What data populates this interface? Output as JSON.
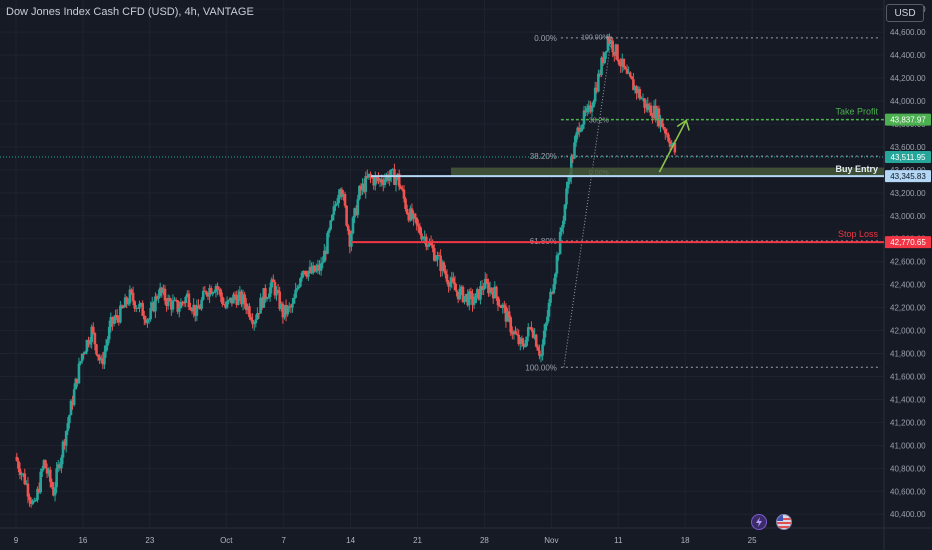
{
  "header": {
    "title": "Dow Jones Index Cash CFD (USD), 4h, VANTAGE",
    "currency_button": "USD"
  },
  "icons": {
    "bolt": "lightning-bolt-icon",
    "flag": "us-flag-icon"
  },
  "colors": {
    "background": "#161a25",
    "up": "#26a69a",
    "down": "#ef5350",
    "take_profit": "#4caf50",
    "stop_loss": "#f23645",
    "entry": "#b3d7f5",
    "fib": "#9aa0ad",
    "price_line": "#26a69a",
    "arrow": "#8bc34a"
  },
  "chart_data": {
    "type": "candlestick",
    "title": "Dow Jones Index Cash CFD (USD), 4h, VANTAGE",
    "currency": "USD",
    "y_ticks": [
      40400,
      40600,
      40800,
      41000,
      41200,
      41400,
      41600,
      41800,
      42000,
      42200,
      42400,
      42600,
      42800,
      43000,
      43200,
      43400,
      43600,
      43800,
      44000,
      44200,
      44400,
      44600,
      44800
    ],
    "y_tick_labels": [
      "40,400.00",
      "40,600.00",
      "40,800.00",
      "41,000.00",
      "41,200.00",
      "41,400.00",
      "41,600.00",
      "41,800.00",
      "42,000.00",
      "42,200.00",
      "42,400.00",
      "42,600.00",
      "42,800.00",
      "43,000.00",
      "43,200.00",
      "43,400.00",
      "43,600.00",
      "43,800.00",
      "44,000.00",
      "44,200.00",
      "44,400.00",
      "44,600.00",
      "44,800.00"
    ],
    "x_tick_labels": [
      "9",
      "16",
      "23",
      "Oct",
      "7",
      "14",
      "21",
      "28",
      "Nov",
      "11",
      "18",
      "25"
    ],
    "x_tick_days": [
      0,
      7,
      14,
      22,
      28,
      35,
      42,
      49,
      56,
      63,
      70,
      77
    ],
    "ylim": [
      40280,
      44880
    ],
    "grid": true,
    "series_close_path": [
      [
        0,
        40900
      ],
      [
        1,
        40700
      ],
      [
        2,
        40450
      ],
      [
        3,
        40850
      ],
      [
        4,
        40600
      ],
      [
        5,
        41000
      ],
      [
        6,
        41400
      ],
      [
        7,
        41800
      ],
      [
        8,
        42000
      ],
      [
        9,
        41700
      ],
      [
        10,
        42050
      ],
      [
        11,
        42150
      ],
      [
        12,
        42300
      ],
      [
        13,
        42200
      ],
      [
        14,
        42100
      ],
      [
        15,
        42350
      ],
      [
        16,
        42250
      ],
      [
        17,
        42200
      ],
      [
        18,
        42300
      ],
      [
        19,
        42150
      ],
      [
        20,
        42350
      ],
      [
        21,
        42400
      ],
      [
        22,
        42200
      ],
      [
        23,
        42300
      ],
      [
        24,
        42250
      ],
      [
        25,
        42100
      ],
      [
        26,
        42300
      ],
      [
        27,
        42400
      ],
      [
        28,
        42150
      ],
      [
        29,
        42200
      ],
      [
        30,
        42550
      ],
      [
        31,
        42500
      ],
      [
        32,
        42550
      ],
      [
        33,
        42900
      ],
      [
        34,
        43300
      ],
      [
        35,
        42800
      ],
      [
        36,
        43200
      ],
      [
        37,
        43330
      ],
      [
        38,
        43300
      ],
      [
        39,
        43350
      ],
      [
        40,
        43330
      ],
      [
        41,
        43050
      ],
      [
        42,
        42900
      ],
      [
        43,
        42800
      ],
      [
        44,
        42650
      ],
      [
        45,
        42500
      ],
      [
        46,
        42350
      ],
      [
        47,
        42300
      ],
      [
        48,
        42250
      ],
      [
        49,
        42400
      ],
      [
        50,
        42350
      ],
      [
        51,
        42200
      ],
      [
        52,
        42000
      ],
      [
        53,
        41850
      ],
      [
        54,
        42050
      ],
      [
        55,
        41780
      ],
      [
        56,
        42300
      ],
      [
        57,
        42800
      ],
      [
        58,
        43400
      ],
      [
        59,
        43800
      ],
      [
        60,
        43900
      ],
      [
        61,
        44200
      ],
      [
        62,
        44560
      ],
      [
        63,
        44400
      ],
      [
        64,
        44200
      ],
      [
        65,
        44100
      ],
      [
        66,
        43950
      ],
      [
        67,
        43900
      ],
      [
        68,
        43750
      ],
      [
        69,
        43560
      ]
    ],
    "fib_levels": [
      {
        "label": "0.00%",
        "price": 44550
      },
      {
        "label": "38.20%",
        "price": 43520
      },
      {
        "label": "61.80%",
        "price": 42780
      },
      {
        "label": "100.00%",
        "price": 41680
      }
    ],
    "fib_extension": [
      {
        "label": "100.00%",
        "price": 44560
      },
      {
        "label": "38.2%",
        "price": 43840
      },
      {
        "label": "0.00%",
        "price": 43380
      }
    ],
    "levels": {
      "take_profit": {
        "label": "Take Profit",
        "price_label": "43,837.97",
        "price": 43837.97
      },
      "current": {
        "price_label": "43,511.95",
        "price": 43511.95
      },
      "entry": {
        "label": "Buy Entry",
        "price_label": "43,345.83",
        "price": 43345.83
      },
      "stop_loss": {
        "label": "Stop Loss",
        "price_label": "42,770.65",
        "price": 42770.65
      }
    }
  }
}
